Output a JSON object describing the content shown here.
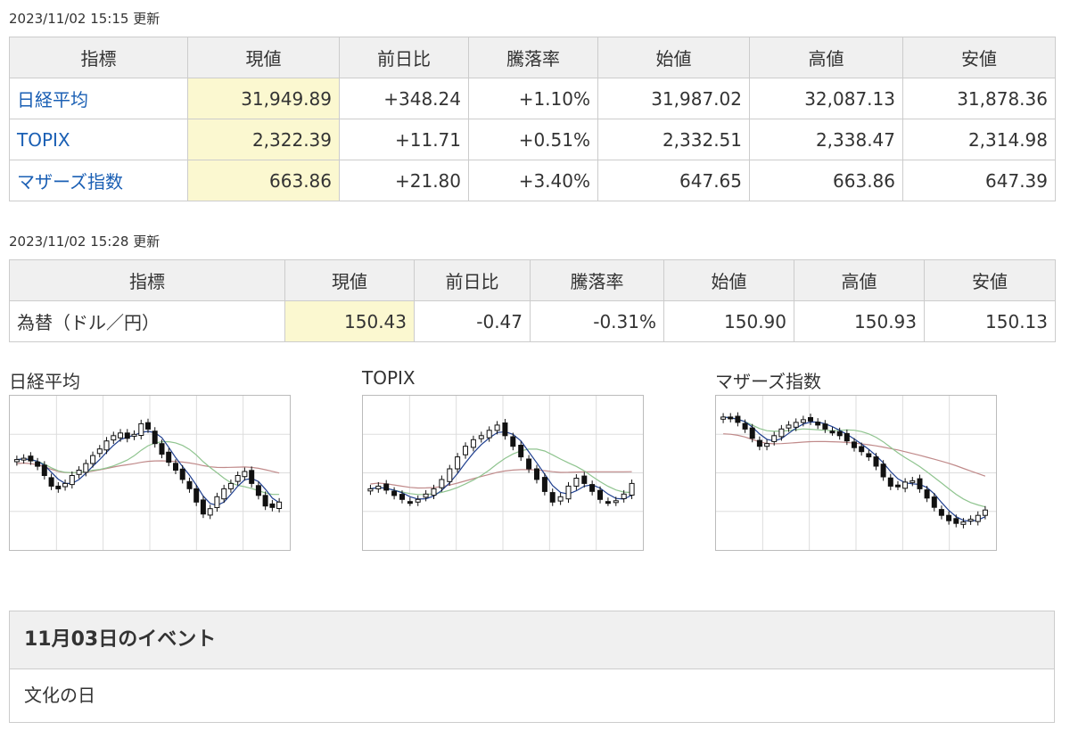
{
  "table1": {
    "updated": "2023/11/02 15:15 更新",
    "headers": [
      "指標",
      "現値",
      "前日比",
      "騰落率",
      "始値",
      "高値",
      "安値"
    ],
    "rows": [
      {
        "name": "日経平均",
        "current": "31,949.89",
        "change": "+348.24",
        "rate": "+1.10%",
        "open": "31,987.02",
        "high": "32,087.13",
        "low": "31,878.36"
      },
      {
        "name": "TOPIX",
        "current": "2,322.39",
        "change": "+11.71",
        "rate": "+0.51%",
        "open": "2,332.51",
        "high": "2,338.47",
        "low": "2,314.98"
      },
      {
        "name": "マザーズ指数",
        "current": "663.86",
        "change": "+21.80",
        "rate": "+3.40%",
        "open": "647.65",
        "high": "663.86",
        "low": "647.39"
      }
    ]
  },
  "table2": {
    "updated": "2023/11/02 15:28 更新",
    "headers": [
      "指標",
      "現値",
      "前日比",
      "騰落率",
      "始値",
      "高値",
      "安値"
    ],
    "rows": [
      {
        "name": "為替（ドル／円）",
        "current": "150.43",
        "change": "-0.47",
        "rate": "-0.31%",
        "open": "150.90",
        "high": "150.93",
        "low": "150.13"
      }
    ]
  },
  "colors": {
    "up": "#e0001c",
    "down": "#1a4fb4",
    "link": "#1a5fb4",
    "highlight": "#fbf8d0",
    "header_bg": "#f0f0f0"
  },
  "charts": [
    {
      "title": "日経平均",
      "icon": "candlestick-chart",
      "closes": [
        0.6,
        0.61,
        0.59,
        0.55,
        0.48,
        0.4,
        0.38,
        0.42,
        0.48,
        0.52,
        0.57,
        0.63,
        0.68,
        0.74,
        0.78,
        0.8,
        0.76,
        0.79,
        0.87,
        0.83,
        0.72,
        0.64,
        0.58,
        0.52,
        0.45,
        0.38,
        0.28,
        0.19,
        0.23,
        0.32,
        0.38,
        0.42,
        0.48,
        0.51,
        0.42,
        0.33,
        0.25,
        0.24,
        0.28
      ]
    },
    {
      "title": "TOPIX",
      "icon": "candlestick-chart",
      "closes": [
        0.38,
        0.4,
        0.37,
        0.33,
        0.3,
        0.28,
        0.3,
        0.34,
        0.38,
        0.45,
        0.53,
        0.62,
        0.7,
        0.75,
        0.78,
        0.82,
        0.86,
        0.78,
        0.7,
        0.62,
        0.53,
        0.45,
        0.36,
        0.28,
        0.32,
        0.4,
        0.46,
        0.42,
        0.36,
        0.3,
        0.28,
        0.29,
        0.34,
        0.42
      ]
    },
    {
      "title": "マザーズ指数",
      "icon": "candlestick-chart",
      "closes": [
        0.92,
        0.91,
        0.88,
        0.83,
        0.76,
        0.7,
        0.72,
        0.78,
        0.83,
        0.86,
        0.88,
        0.9,
        0.89,
        0.86,
        0.83,
        0.81,
        0.78,
        0.74,
        0.69,
        0.66,
        0.62,
        0.55,
        0.47,
        0.4,
        0.4,
        0.43,
        0.44,
        0.38,
        0.31,
        0.24,
        0.18,
        0.14,
        0.12,
        0.13,
        0.15,
        0.18,
        0.22
      ]
    }
  ],
  "event": {
    "title": "11月03日のイベント",
    "text": "文化の日"
  }
}
